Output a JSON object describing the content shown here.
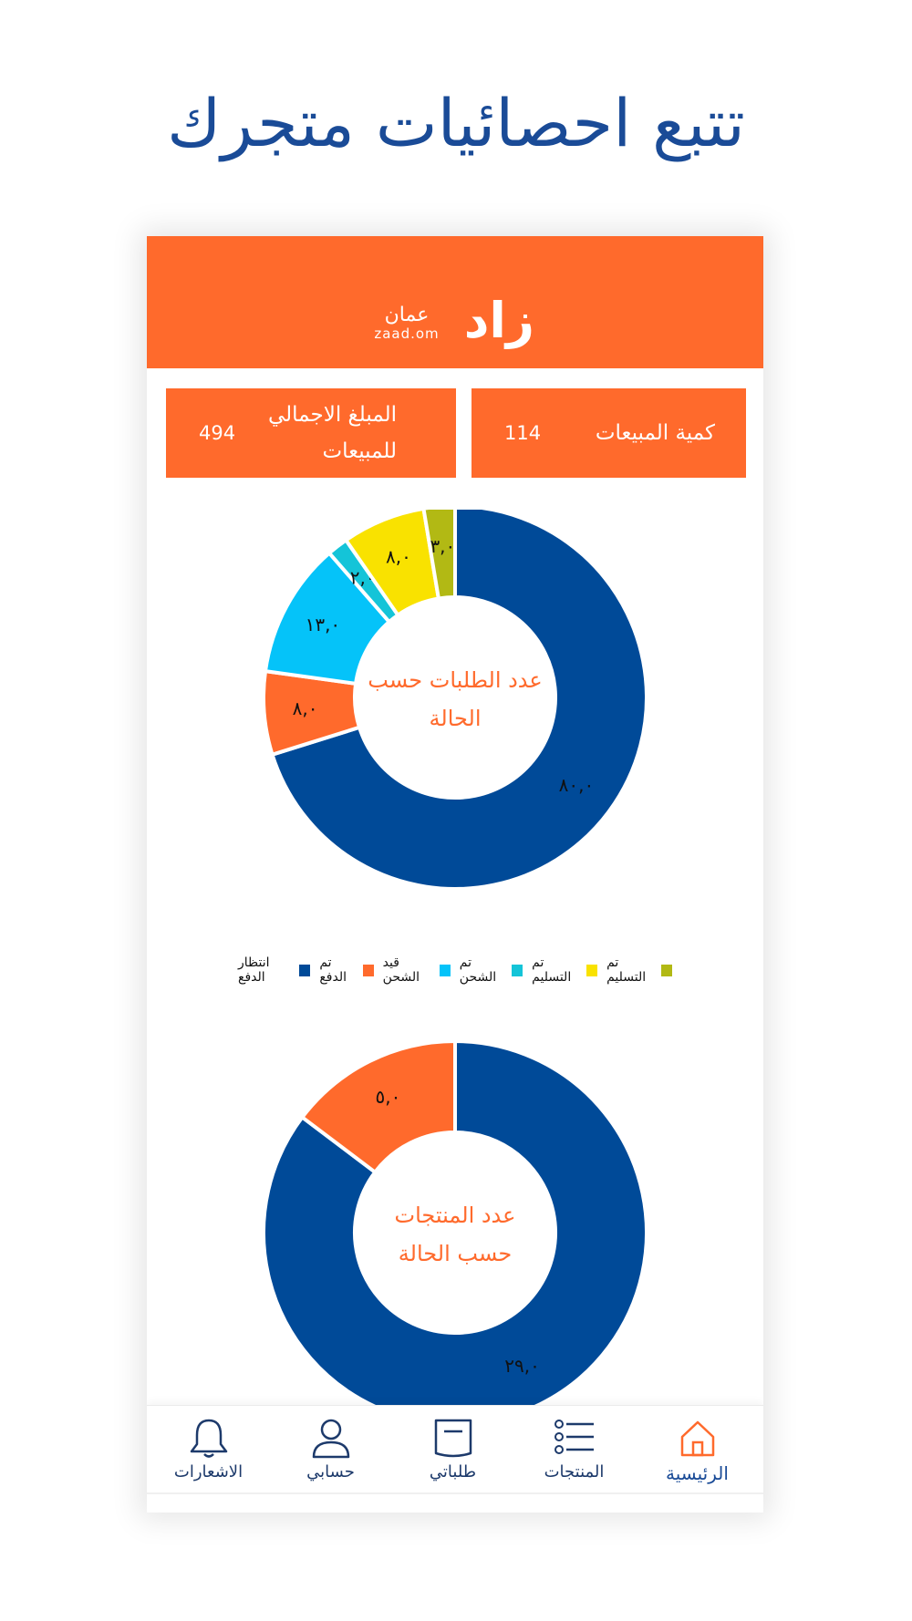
{
  "headline": "تتبع احصائيات متجرك",
  "logo": {
    "arabic": "عمان",
    "english": "zaad.om",
    "mark": "زاد"
  },
  "stats": {
    "sales_qty": {
      "label": "كمية المبيعات",
      "value": "114"
    },
    "sales_total": {
      "label_line1": "المبلغ الاجمالي",
      "label_line2": "للمبيعات",
      "value": "494"
    }
  },
  "colors": {
    "accent": "#ff6a2c",
    "primary": "#1a4b97",
    "donut_blue": "#004a98"
  },
  "chart_data": [
    {
      "type": "pie",
      "donut": true,
      "center_label_line1": "عدد الطلبات حسب",
      "center_label_line2": "الحالة",
      "categories": [
        "انتظار الدفع",
        "تم الدفع",
        "قيد الشحن",
        "تم الشحن",
        "تم التسليم",
        "تم التسليم"
      ],
      "values": [
        80,
        8,
        13,
        2,
        8,
        3
      ],
      "value_labels": [
        "٨٠,٠",
        "٨,٠",
        "١٣,٠",
        "٢,٠",
        "٨,٠",
        "٣,٠"
      ],
      "colors": [
        "#004a98",
        "#ff6a2c",
        "#05c3f9",
        "#14c4d8",
        "#f9e200",
        "#b2b914"
      ],
      "legend": [
        {
          "label": "تم التسليم",
          "color": "#b2b914"
        },
        {
          "label": "تم التسليم",
          "color": "#f9e200"
        },
        {
          "label": "تم الشحن",
          "color": "#14c4d8"
        },
        {
          "label": "قيد الشحن",
          "color": "#05c3f9"
        },
        {
          "label": "تم الدفع",
          "color": "#ff6a2c"
        },
        {
          "label": "انتظار الدفع",
          "color": "#004a98"
        }
      ],
      "legend_position": "bottom"
    },
    {
      "type": "pie",
      "donut": true,
      "center_label_line1": "عدد المنتجات",
      "center_label_line2": "حسب الحالة",
      "values": [
        29,
        5
      ],
      "value_labels": [
        "٢٩,٠",
        "٥,٠"
      ],
      "colors": [
        "#004a98",
        "#ff6a2c"
      ]
    }
  ],
  "nav": {
    "items": [
      {
        "label": "الرئيسية",
        "icon": "home-icon"
      },
      {
        "label": "المنتجات",
        "icon": "list-icon"
      },
      {
        "label": "طلباتي",
        "icon": "orders-icon"
      },
      {
        "label": "حسابي",
        "icon": "user-icon"
      },
      {
        "label": "الاشعارات",
        "icon": "bell-icon"
      }
    ]
  }
}
